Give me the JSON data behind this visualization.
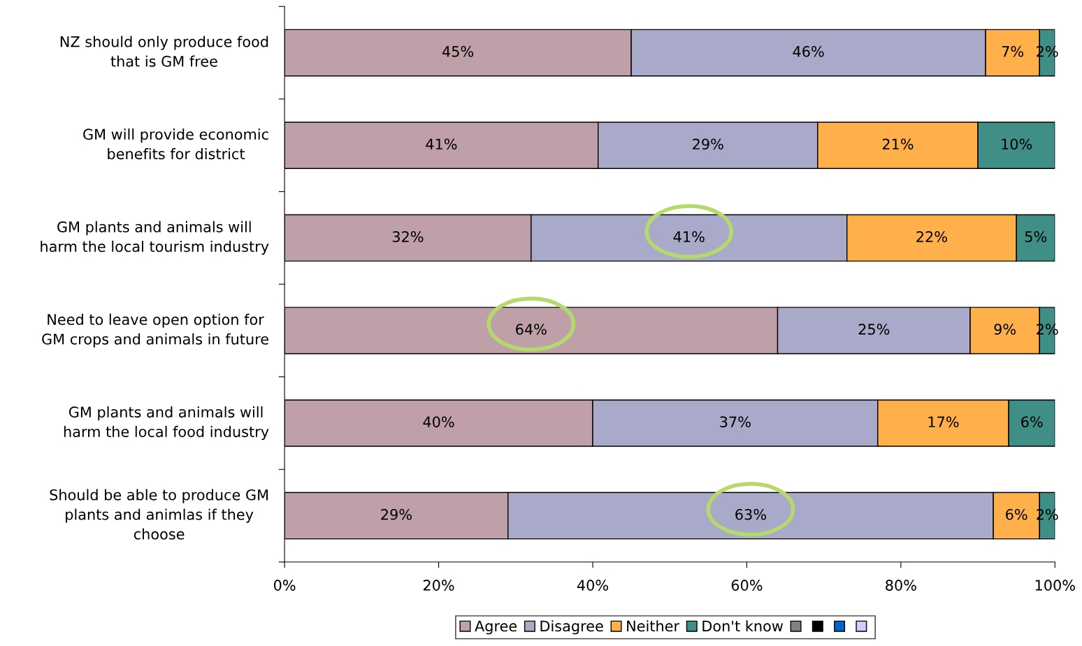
{
  "chart_data": {
    "type": "bar",
    "orientation": "horizontal",
    "stacked": true,
    "categories": [
      "NZ should only produce food\nthat is GM free",
      "GM will provide economic\nbenefits for district",
      "GM plants and animals will\nharm the local tourism industry",
      "Need to leave open option for\nGM crops and animals in future",
      "GM plants and animals will\nharm the local food industry",
      "Should be able to produce GM\nplants and animlas if they\nchoose"
    ],
    "series": [
      {
        "name": "Agree",
        "color": "#bfa0a8",
        "values": [
          45,
          40.7,
          32,
          64,
          40,
          29
        ],
        "value_labels": [
          "45%",
          "41%",
          "32%",
          "64%",
          "40%",
          "29%"
        ]
      },
      {
        "name": "Disagree",
        "color": "#a9a9c9",
        "values": [
          46,
          28.5,
          41,
          25,
          37,
          63
        ],
        "value_labels": [
          "46%",
          "29%",
          "41%",
          "25%",
          "37%",
          "63%"
        ]
      },
      {
        "name": "Neither",
        "color": "#ffb04a",
        "values": [
          7,
          20.8,
          22,
          9,
          17,
          6
        ],
        "value_labels": [
          "7%",
          "21%",
          "22%",
          "9%",
          "17%",
          "6%"
        ]
      },
      {
        "name": "Don't know",
        "color": "#3f8f86",
        "values": [
          2,
          10,
          5,
          2,
          6,
          2
        ],
        "value_labels": [
          "2%",
          "10%",
          "5%",
          "2%",
          "6%",
          "2%"
        ]
      },
      {
        "color": "#808080",
        "values": [
          null,
          null,
          null,
          null,
          null,
          null
        ]
      },
      {
        "color": "#000000",
        "values": [
          null,
          null,
          null,
          null,
          null,
          null
        ]
      },
      {
        "color": "#0066cc",
        "values": [
          null,
          null,
          null,
          null,
          null,
          null
        ]
      },
      {
        "color": "#ccccff",
        "values": [
          null,
          null,
          null,
          null,
          null,
          null
        ]
      }
    ],
    "xlim": [
      0,
      100
    ],
    "xticks": [
      {
        "value": 0,
        "label": "0%"
      },
      {
        "value": 20,
        "label": "20%"
      },
      {
        "value": 40,
        "label": "40%"
      },
      {
        "value": 60,
        "label": "60%"
      },
      {
        "value": 80,
        "label": "80%"
      },
      {
        "value": 100,
        "label": "100%"
      }
    ],
    "legend": "bottom",
    "grid": false
  }
}
